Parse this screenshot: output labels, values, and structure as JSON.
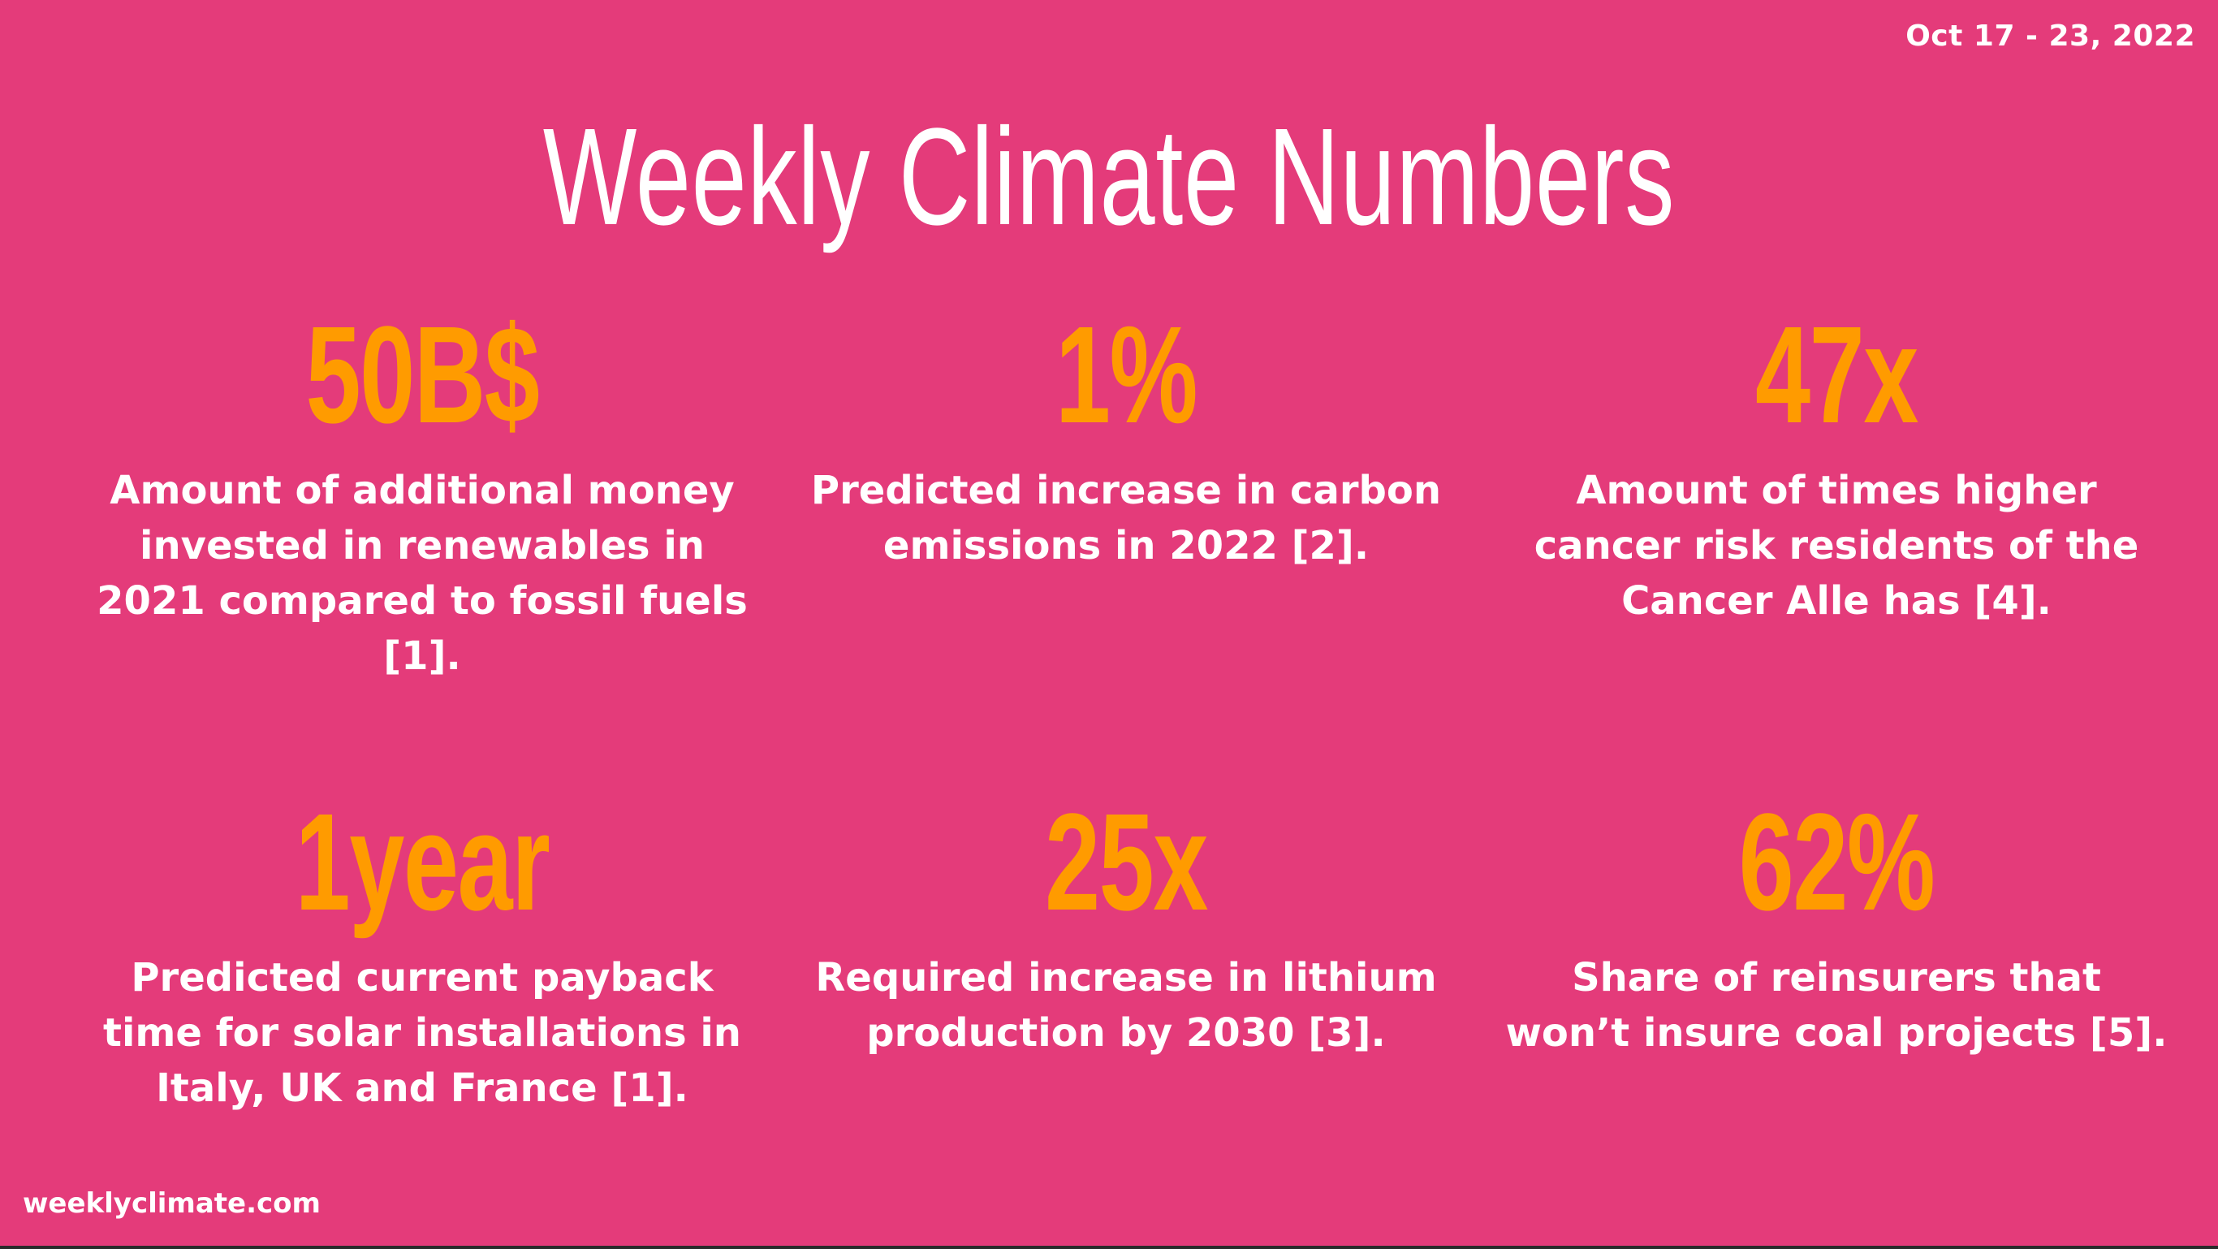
{
  "date_range": "Oct 17 - 23, 2022",
  "title": "Weekly Climate Numbers",
  "stats": [
    {
      "value": "50B$",
      "description": "Amount of additional money invested in renewables in 2021 compared to fossil fuels [1]."
    },
    {
      "value": "1%",
      "description": "Predicted increase in carbon emissions in 2022 [2]."
    },
    {
      "value": "47x",
      "description": "Amount of times higher cancer risk residents of the Cancer Alle has [4]."
    },
    {
      "value": "1year",
      "description": "Predicted current payback time for solar installations in Italy, UK and France [1]."
    },
    {
      "value": "25x",
      "description": "Required increase in lithium production by 2030 [3]."
    },
    {
      "value": "62%",
      "description": "Share of reinsurers that won’t insure coal projects [5]."
    }
  ],
  "footer": "weeklyclimate.com",
  "colors": {
    "background": "#e43b7a",
    "accent": "#ff9b00",
    "text": "#ffffff"
  }
}
